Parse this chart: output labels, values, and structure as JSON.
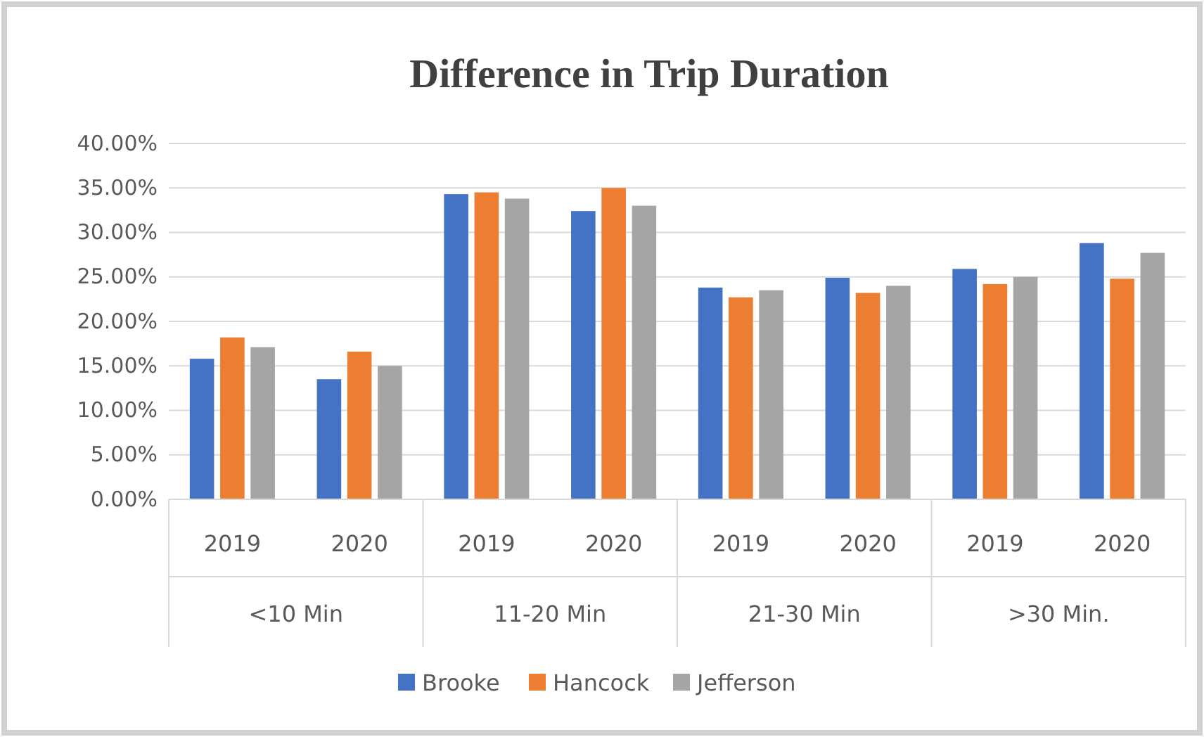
{
  "chart_data": {
    "type": "bar",
    "title": "Difference in Trip Duration",
    "categories": [
      "2019",
      "2020",
      "2019",
      "2020",
      "2019",
      "2020",
      "2019",
      "2020"
    ],
    "annotations": [
      "<10 Min",
      "11-20 Min",
      "21-30 Min",
      ">30 Min."
    ],
    "series": [
      {
        "name": "Brooke",
        "color": "#4472c4",
        "values": [
          15.8,
          13.5,
          34.3,
          32.4,
          23.8,
          24.9,
          25.9,
          28.8
        ]
      },
      {
        "name": "Hancock",
        "color": "#ed7d31",
        "values": [
          18.2,
          16.6,
          34.5,
          35.0,
          22.7,
          23.2,
          24.2,
          24.8
        ]
      },
      {
        "name": "Jefferson",
        "color": "#a5a5a5",
        "values": [
          17.1,
          15.0,
          33.8,
          33.0,
          23.5,
          24.0,
          25.0,
          27.7
        ]
      }
    ],
    "ylim": [
      0,
      40
    ],
    "yticks": [
      {
        "value": 0,
        "label": "0.00%"
      },
      {
        "value": 5,
        "label": "5.00%"
      },
      {
        "value": 10,
        "label": "10.00%"
      },
      {
        "value": 15,
        "label": "15.00%"
      },
      {
        "value": 20,
        "label": "20.00%"
      },
      {
        "value": 25,
        "label": "25.00%"
      },
      {
        "value": 30,
        "label": "30.00%"
      },
      {
        "value": 35,
        "label": "35.00%"
      },
      {
        "value": 40,
        "label": "40.00%"
      }
    ],
    "grid": "y",
    "legend": "bottom"
  }
}
